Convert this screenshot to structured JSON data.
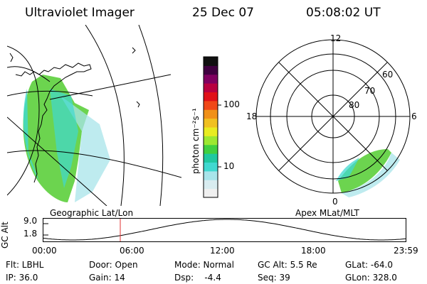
{
  "header": {
    "instrument": "Ultraviolet Imager",
    "date": "25 Dec 07",
    "time": "05:08:02 UT"
  },
  "left_panel": {
    "label": "Geographic Lat/Lon"
  },
  "right_panel": {
    "label": "Apex MLat/MLT",
    "mlt_labels": [
      "12",
      "18",
      "6",
      "0"
    ],
    "lat_labels": [
      "60",
      "70",
      "80"
    ]
  },
  "colorbar": {
    "unit": "photon cm⁻²s⁻¹",
    "ticks": [
      "100",
      "10"
    ],
    "colors": [
      "#f0f0f0",
      "#d8ecf0",
      "#a8e4ea",
      "#40d8d0",
      "#20c8a0",
      "#40d040",
      "#9ce830",
      "#e8ec20",
      "#f0c020",
      "#f09018",
      "#f04818",
      "#e01018",
      "#b80040",
      "#800060",
      "#400040",
      "#101010"
    ]
  },
  "altitude_plot": {
    "ylabel": "GC Alt",
    "yticks": [
      "9.0",
      "1.8"
    ],
    "xticks": [
      "00:00",
      "06:00",
      "12:00",
      "18:00",
      "23:59"
    ],
    "marker_time_hours": 5.13,
    "marker_color": "#e03030"
  },
  "info": {
    "flt": "Flt: LBHL",
    "door": "Door: Open",
    "mode": "Mode: Normal",
    "gc_alt": "GC Alt: 5.5 Re",
    "glat": "GLat: -64.0",
    "ip": "IP: 36.0",
    "gain": "Gain: 14",
    "dsp": "Dsp:    -4.4",
    "seq": "Seq: 39",
    "glon": "GLon: 328.0"
  }
}
